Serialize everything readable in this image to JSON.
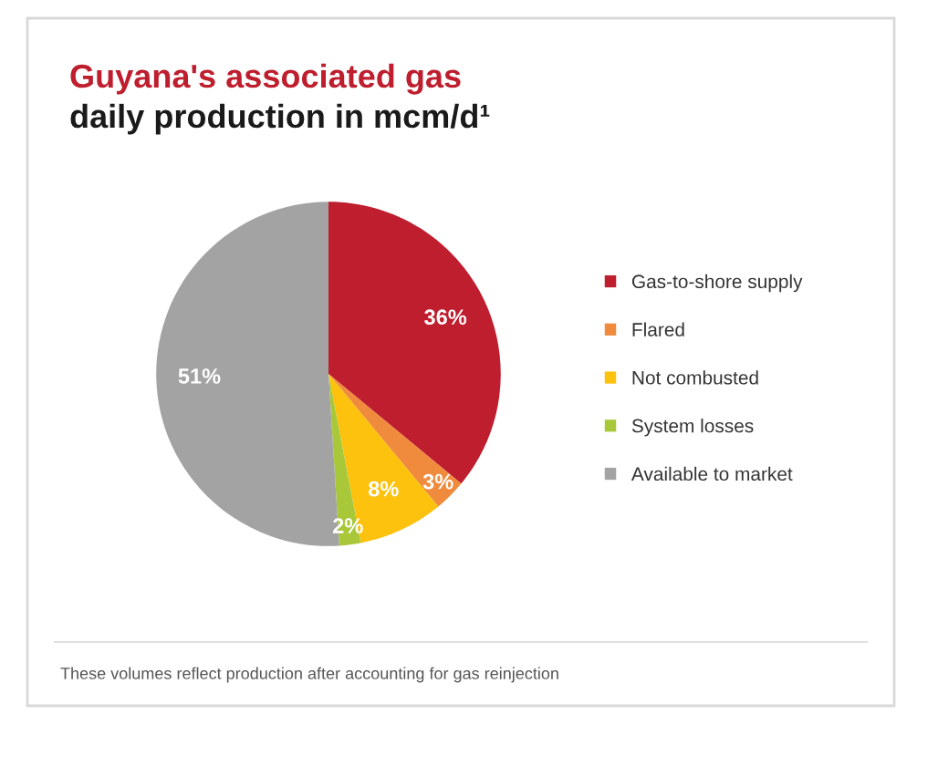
{
  "chart_data": {
    "type": "pie",
    "title": "Guyana's associated gas",
    "subtitle": "daily production in mcm/d¹",
    "categories": [
      "Gas-to-shore supply",
      "Flared",
      "Not combusted",
      "System losses",
      "Available to market"
    ],
    "values": [
      36,
      3,
      8,
      2,
      51
    ],
    "value_labels": [
      "36%",
      "3%",
      "8%",
      "2%",
      "51%"
    ],
    "colors": [
      "#be1e2d",
      "#f08a3c",
      "#fcc20e",
      "#a8c83a",
      "#a3a3a3"
    ],
    "legend": "right",
    "annotations": [
      "These volumes reflect production after accounting for gas reinjection"
    ]
  }
}
